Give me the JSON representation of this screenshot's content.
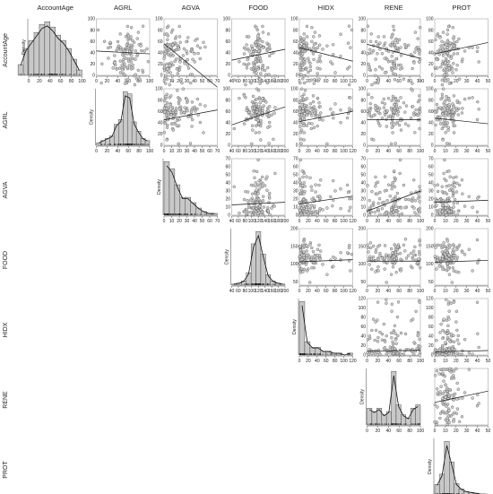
{
  "chart_data": {
    "type": "scatter-matrix",
    "variables": [
      "AccountAge",
      "AGRL",
      "AGVA",
      "FOOD",
      "HIDX",
      "RENE",
      "PROT"
    ],
    "diagonal_y_label": "Density",
    "ranges": {
      "AccountAge": [
        0,
        100
      ],
      "AGRL": [
        0,
        100
      ],
      "AGVA": [
        0,
        70
      ],
      "FOOD": [
        40,
        200
      ],
      "HIDX": [
        0,
        120
      ],
      "RENE": [
        0,
        100
      ],
      "PROT": [
        0,
        50
      ]
    },
    "value_ranges": {
      "AccountAge": [
        -20,
        100
      ],
      "AGRL": [
        0,
        100
      ],
      "AGVA": [
        0,
        70
      ],
      "FOOD": [
        40,
        200
      ],
      "HIDX": [
        0,
        120
      ],
      "RENE": [
        0,
        100
      ],
      "PROT": [
        0,
        50
      ]
    },
    "x_ticks": {
      "AccountAge": [
        0,
        20,
        40,
        60,
        80,
        100
      ],
      "AGRL": [
        0,
        20,
        40,
        60,
        80,
        100
      ],
      "AGVA": [
        0,
        10,
        20,
        30,
        40,
        50,
        60,
        70
      ],
      "FOOD": [
        40,
        60,
        80,
        100,
        120,
        140,
        160,
        180,
        200
      ],
      "HIDX": [
        0,
        20,
        40,
        60,
        80,
        100,
        120
      ],
      "RENE": [
        0,
        20,
        40,
        60,
        80,
        100
      ],
      "PROT": [
        0,
        10,
        20,
        30,
        40,
        50
      ]
    },
    "y_ticks": {
      "AccountAge": [
        -20,
        0,
        20,
        40,
        60,
        80,
        100
      ],
      "AGRL": [
        0,
        20,
        40,
        60,
        80,
        100
      ],
      "AGVA": [
        0,
        10,
        20,
        30,
        40,
        50,
        60,
        70
      ],
      "FOOD": [
        50,
        100,
        150,
        200
      ],
      "HIDX": [
        0,
        20,
        40,
        60,
        80,
        100,
        120
      ]
    },
    "histograms": {
      "AccountAge": [
        4,
        10,
        13,
        16,
        19,
        20,
        18,
        15,
        13,
        10,
        6,
        2
      ],
      "AGRL": [
        1,
        2,
        3,
        4,
        9,
        11,
        23,
        22,
        10,
        6,
        3,
        2
      ],
      "AGVA": [
        30,
        26,
        17,
        10,
        10,
        7,
        4,
        2,
        1,
        1
      ],
      "FOOD": [
        1,
        2,
        4,
        12,
        40,
        52,
        30,
        10,
        4,
        2,
        1
      ],
      "HIDX": [
        28,
        7,
        4,
        4,
        2,
        2,
        1,
        1,
        0,
        1
      ],
      "RENE": [
        10,
        8,
        10,
        6,
        8,
        32,
        12,
        6,
        4,
        10,
        12
      ],
      "PROT": [
        12,
        24,
        62,
        38,
        13,
        7,
        4,
        3,
        2,
        1,
        1
      ]
    },
    "fit_lines": [
      {
        "x": "AGRL",
        "y": "AccountAge",
        "slope": -0.05,
        "intercept": 43
      },
      {
        "x": "AGVA",
        "y": "AccountAge",
        "slope": -1.1,
        "intercept": 56
      },
      {
        "x": "FOOD",
        "y": "AccountAge",
        "slope": 0.12,
        "intercept": 22
      },
      {
        "x": "HIDX",
        "y": "AccountAge",
        "slope": -0.2,
        "intercept": 49
      },
      {
        "x": "RENE",
        "y": "AccountAge",
        "slope": -0.25,
        "intercept": 55
      },
      {
        "x": "PROT",
        "y": "AccountAge",
        "slope": 0.4,
        "intercept": 38
      },
      {
        "x": "AGVA",
        "y": "AGRL",
        "slope": 0.25,
        "intercept": 45
      },
      {
        "x": "FOOD",
        "y": "AGRL",
        "slope": 0.2,
        "intercept": 28
      },
      {
        "x": "HIDX",
        "y": "AGRL",
        "slope": 0.15,
        "intercept": 42
      },
      {
        "x": "RENE",
        "y": "AGRL",
        "slope": 0.0,
        "intercept": 45
      },
      {
        "x": "PROT",
        "y": "AGRL",
        "slope": -0.2,
        "intercept": 48
      },
      {
        "x": "FOOD",
        "y": "AGVA",
        "slope": 0.02,
        "intercept": 12
      },
      {
        "x": "HIDX",
        "y": "AGVA",
        "slope": 0.08,
        "intercept": 14
      },
      {
        "x": "RENE",
        "y": "AGVA",
        "slope": 0.25,
        "intercept": 5
      },
      {
        "x": "PROT",
        "y": "AGVA",
        "slope": 0.05,
        "intercept": 16
      },
      {
        "x": "HIDX",
        "y": "FOOD",
        "slope": 0.05,
        "intercept": 106
      },
      {
        "x": "RENE",
        "y": "FOOD",
        "slope": 0.0,
        "intercept": 108
      },
      {
        "x": "PROT",
        "y": "FOOD",
        "slope": 0.1,
        "intercept": 105
      },
      {
        "x": "RENE",
        "y": "HIDX",
        "slope": 0.02,
        "intercept": 8
      },
      {
        "x": "PROT",
        "y": "HIDX",
        "slope": 0.05,
        "intercept": 7
      },
      {
        "x": "PROT",
        "y": "RENE",
        "slope": 0.4,
        "intercept": 40
      }
    ]
  }
}
